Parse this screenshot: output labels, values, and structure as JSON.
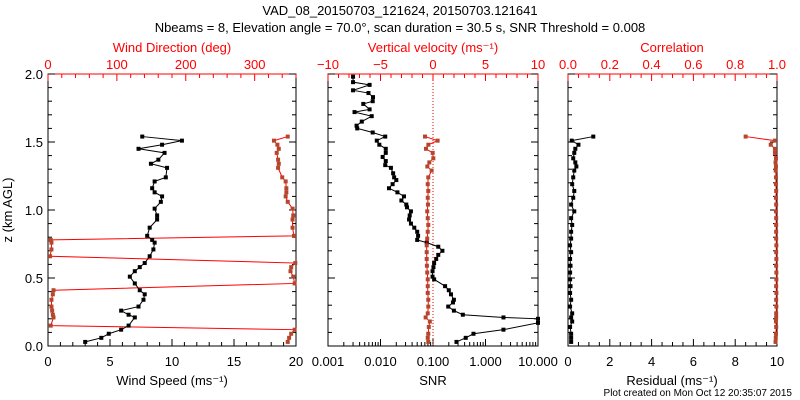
{
  "title": "VAD_08_20150703_121624, 20150703.121641",
  "subtitle": "Nbeams = 8, Elevation angle = 70.0°, scan duration = 30.5 s, SNR Threshold = 0.008",
  "footer": "Plot created on Mon Oct 12 20:35:07 2015",
  "colors": {
    "axis_top": "#ff0000",
    "secondary_series": "#b5462c",
    "primary_series": "#000000",
    "wrap_line": "#ff0000"
  },
  "chart_data": [
    {
      "type": "line",
      "panel": "wind",
      "ylabel": "z (km AGL)",
      "ylim": [
        0,
        2
      ],
      "yticks": [
        "0.0",
        "0.5",
        "1.0",
        "1.5",
        "2.0"
      ],
      "xlabel": "Wind Speed (ms⁻¹)",
      "xlim": [
        0,
        20
      ],
      "xticks": [
        "0",
        "5",
        "10",
        "15",
        "20"
      ],
      "top_xlabel": "Wind Direction (deg)",
      "top_xlim": [
        0,
        360
      ],
      "top_xticks": [
        "0",
        "100",
        "200",
        "300"
      ],
      "z": [
        1.54,
        1.51,
        1.48,
        1.45,
        1.42,
        1.37,
        1.34,
        1.31,
        1.24,
        1.21,
        1.16,
        1.13,
        1.1,
        1.06,
        1.01,
        0.96,
        0.93,
        0.87,
        0.81,
        0.78,
        0.76,
        0.71,
        0.66,
        0.61,
        0.58,
        0.55,
        0.51,
        0.46,
        0.41,
        0.38,
        0.34,
        0.29,
        0.26,
        0.23,
        0.21,
        0.15,
        0.12,
        0.09,
        0.06,
        0.03
      ],
      "series": [
        {
          "name": "Wind Speed",
          "axis": "bottom",
          "values": [
            7.6,
            10.8,
            9.2,
            7.3,
            9.4,
            8.9,
            8.3,
            9.6,
            9.5,
            8.6,
            8.4,
            8.6,
            9.2,
            9.1,
            8.6,
            8.8,
            8.8,
            8.2,
            8.0,
            8.4,
            8.6,
            8.5,
            8.2,
            7.8,
            7.4,
            7.0,
            6.6,
            7.0,
            7.4,
            7.8,
            7.7,
            7.3,
            5.9,
            6.5,
            7.0,
            6.5,
            5.9,
            4.9,
            4.3,
            3.0
          ]
        },
        {
          "name": "Wind Direction",
          "axis": "top",
          "values": [
            348,
            328,
            333,
            335,
            332,
            334,
            335,
            334,
            340,
            345,
            346,
            346,
            345,
            348,
            355,
            356,
            355,
            355,
            357,
            4,
            5,
            5,
            3,
            359,
            353,
            352,
            356,
            358,
            8,
            7,
            5,
            5,
            6,
            7,
            8,
            4,
            358,
            353,
            350,
            348
          ]
        }
      ]
    },
    {
      "type": "line",
      "panel": "snr",
      "ylim": [
        0,
        2
      ],
      "xlabel": "SNR",
      "xscale": "log",
      "xlim": [
        0.001,
        10
      ],
      "xticks": [
        "0.001",
        "0.010",
        "0.100",
        "1.000",
        "10.000"
      ],
      "top_xlabel": "Vertical velocity (ms⁻¹)",
      "top_xlim": [
        -10,
        10
      ],
      "top_xticks": [
        "−10",
        "−5",
        "0",
        "5",
        "10"
      ],
      "snr_z": [
        1.98,
        1.94,
        1.92,
        1.88,
        1.86,
        1.83,
        1.8,
        1.78,
        1.74,
        1.72,
        1.69,
        1.65,
        1.62,
        1.6,
        1.57,
        1.54,
        1.51,
        1.48,
        1.45,
        1.42,
        1.39,
        1.36,
        1.33,
        1.31,
        1.27,
        1.24,
        1.22,
        1.19,
        1.16,
        1.13,
        1.1,
        1.07,
        1.04,
        1.02,
        0.99,
        0.96,
        0.93,
        0.9,
        0.87,
        0.84,
        0.81,
        0.78,
        0.76,
        0.73,
        0.7,
        0.67,
        0.64,
        0.61,
        0.58,
        0.55,
        0.51,
        0.49,
        0.44,
        0.41,
        0.38,
        0.34,
        0.32,
        0.29,
        0.26,
        0.23,
        0.21,
        0.2,
        0.17,
        0.12,
        0.09,
        0.06,
        0.03
      ],
      "snr": [
        0.003,
        0.003,
        0.0062,
        0.003,
        0.0059,
        0.0072,
        0.0071,
        0.0047,
        0.0062,
        0.0032,
        0.0068,
        0.0044,
        0.0035,
        0.0036,
        0.0071,
        0.0123,
        0.0085,
        0.0095,
        0.0126,
        0.0126,
        0.011,
        0.0126,
        0.0123,
        0.0158,
        0.0174,
        0.0182,
        0.02,
        0.017,
        0.0145,
        0.021,
        0.028,
        0.025,
        0.031,
        0.032,
        0.038,
        0.036,
        0.035,
        0.038,
        0.044,
        0.05,
        0.052,
        0.05,
        0.076,
        0.126,
        0.151,
        0.126,
        0.115,
        0.105,
        0.102,
        0.098,
        0.098,
        0.105,
        0.17,
        0.2,
        0.22,
        0.25,
        0.24,
        0.195,
        0.25,
        0.37,
        2.2,
        30,
        30,
        2.2,
        0.59,
        0.42,
        0.28
      ],
      "vv_z": [
        1.54,
        1.51,
        1.48,
        1.45,
        1.42,
        1.38,
        1.35,
        1.32,
        1.29,
        1.24,
        1.19,
        1.14,
        1.09,
        1.04,
        0.99,
        0.94,
        0.89,
        0.84,
        0.79,
        0.74,
        0.69,
        0.64,
        0.59,
        0.54,
        0.49,
        0.44,
        0.39,
        0.34,
        0.29,
        0.24,
        0.21,
        0.18,
        0.14,
        0.09,
        0.06,
        0.03
      ],
      "vv": [
        -0.76,
        0.44,
        -0.44,
        -0.67,
        -0.03,
        0.03,
        -0.35,
        -0.54,
        -0.13,
        -0.45,
        -0.5,
        -0.45,
        -0.5,
        -0.48,
        -0.55,
        -0.5,
        -0.45,
        -0.5,
        -0.55,
        -0.6,
        -0.6,
        -0.6,
        -0.58,
        -0.55,
        -0.5,
        -0.5,
        -0.5,
        -0.45,
        -0.45,
        -0.5,
        -0.7,
        -0.3,
        -0.4,
        -0.45,
        -0.5,
        -0.45
      ]
    },
    {
      "type": "line",
      "panel": "residual",
      "ylim": [
        0,
        2
      ],
      "xlabel": "Residual (ms⁻¹)",
      "xlim": [
        0,
        10
      ],
      "xticks": [
        "0",
        "2",
        "4",
        "6",
        "8",
        "10"
      ],
      "top_xlabel": "Correlation",
      "top_xlim": [
        0,
        1
      ],
      "top_xticks": [
        "0.0",
        "0.2",
        "0.4",
        "0.6",
        "0.8",
        "1.0"
      ],
      "z": [
        1.54,
        1.51,
        1.48,
        1.45,
        1.42,
        1.38,
        1.35,
        1.32,
        1.29,
        1.24,
        1.19,
        1.14,
        1.09,
        1.04,
        0.99,
        0.94,
        0.89,
        0.84,
        0.79,
        0.74,
        0.69,
        0.64,
        0.59,
        0.54,
        0.49,
        0.44,
        0.39,
        0.34,
        0.29,
        0.24,
        0.21,
        0.18,
        0.14,
        0.09,
        0.06,
        0.03
      ],
      "residual": [
        1.21,
        0.18,
        0.5,
        0.35,
        0.3,
        0.25,
        0.35,
        0.4,
        0.3,
        0.25,
        0.2,
        0.3,
        0.25,
        0.15,
        0.3,
        0.15,
        0.2,
        0.15,
        0.15,
        0.1,
        0.15,
        0.1,
        0.12,
        0.1,
        0.1,
        0.12,
        0.1,
        0.15,
        0.1,
        0.2,
        0.15,
        0.2,
        0.1,
        0.15,
        0.15,
        0.15
      ],
      "correlation": [
        0.85,
        0.99,
        0.97,
        0.99,
        0.99,
        0.995,
        0.993,
        0.995,
        0.994,
        0.995,
        0.995,
        0.996,
        0.995,
        0.996,
        0.995,
        0.996,
        0.996,
        0.996,
        0.996,
        0.997,
        0.996,
        0.997,
        0.996,
        0.997,
        0.997,
        0.996,
        0.997,
        0.996,
        0.997,
        0.996,
        0.996,
        0.995,
        0.996,
        0.995,
        0.994,
        0.993
      ]
    }
  ]
}
